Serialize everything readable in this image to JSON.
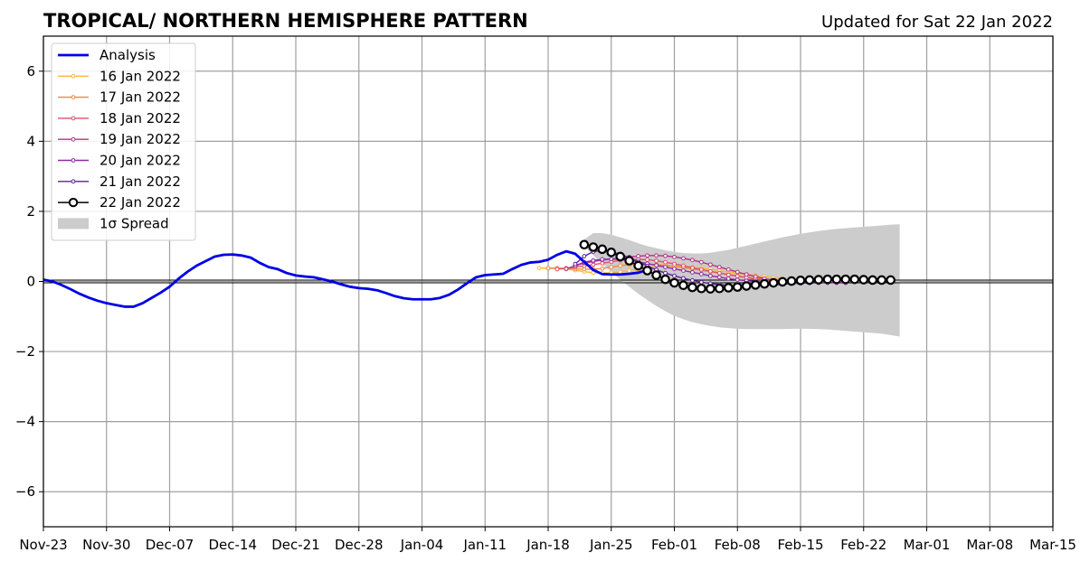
{
  "chart_data": {
    "type": "line",
    "title": "TROPICAL/ NORTHERN HEMISPHERE PATTERN",
    "updated": "Updated for Sat 22 Jan 2022",
    "xlabel": "",
    "ylabel": "",
    "ylim": [
      -7,
      7
    ],
    "yticks": [
      -6,
      -4,
      -2,
      0,
      2,
      4,
      6
    ],
    "ytick_labels": [
      "−6",
      "−4",
      "−2",
      "0",
      "2",
      "4",
      "6"
    ],
    "xlim": [
      "2021-11-23",
      "2022-03-15"
    ],
    "xticks": [
      "2021-11-23",
      "2021-11-30",
      "2021-12-07",
      "2021-12-14",
      "2021-12-21",
      "2021-12-28",
      "2022-01-04",
      "2022-01-11",
      "2022-01-18",
      "2022-01-25",
      "2022-02-01",
      "2022-02-08",
      "2022-02-15",
      "2022-02-22",
      "2022-03-01",
      "2022-03-08",
      "2022-03-15"
    ],
    "xtick_labels": [
      "Nov-23",
      "Nov-30",
      "Dec-07",
      "Dec-14",
      "Dec-21",
      "Dec-28",
      "Jan-04",
      "Jan-11",
      "Jan-18",
      "Jan-25",
      "Feb-01",
      "Feb-08",
      "Feb-15",
      "Feb-22",
      "Mar-01",
      "Mar-08",
      "Mar-15"
    ],
    "grid": true,
    "zero_line": true,
    "legend_placement": "top-left",
    "legend": [
      "Analysis",
      "16 Jan 2022",
      "17 Jan 2022",
      "18 Jan 2022",
      "19 Jan 2022",
      "20 Jan 2022",
      "21 Jan 2022",
      "22 Jan 2022",
      "1σ Spread"
    ],
    "analysis": {
      "name": "Analysis",
      "color": "#0000e6",
      "start": "2021-11-23",
      "values": [
        0.05,
        0.0,
        -0.1,
        -0.22,
        -0.35,
        -0.46,
        -0.55,
        -0.62,
        -0.67,
        -0.72,
        -0.72,
        -0.62,
        -0.47,
        -0.32,
        -0.15,
        0.08,
        0.28,
        0.45,
        0.58,
        0.71,
        0.76,
        0.77,
        0.74,
        0.68,
        0.53,
        0.41,
        0.35,
        0.24,
        0.17,
        0.14,
        0.12,
        0.06,
        0.0,
        -0.08,
        -0.15,
        -0.19,
        -0.21,
        -0.25,
        -0.33,
        -0.42,
        -0.48,
        -0.51,
        -0.51,
        -0.51,
        -0.47,
        -0.38,
        -0.23,
        -0.05,
        0.12,
        0.18,
        0.2,
        0.22,
        0.35,
        0.47,
        0.54,
        0.56,
        0.62,
        0.76,
        0.86,
        0.79,
        0.56,
        0.33,
        0.21,
        0.2,
        0.2,
        0.22,
        0.25,
        0.33
      ]
    },
    "forecasts": [
      {
        "name": "16 Jan 2022",
        "color": "#f9b737",
        "start": "2022-01-17",
        "values": [
          0.38,
          0.38,
          0.37,
          0.35,
          0.32,
          0.28,
          0.25,
          0.24,
          0.25,
          0.27,
          0.31,
          0.35,
          0.39,
          0.42,
          0.44,
          0.44,
          0.43,
          0.41,
          0.38,
          0.35,
          0.31,
          0.27,
          0.23,
          0.2,
          0.17,
          0.14,
          0.11,
          0.08,
          0.05,
          0.03,
          0.01,
          0.0,
          -0.01,
          -0.02,
          -0.02
        ]
      },
      {
        "name": "17 Jan 2022",
        "color": "#f0883c",
        "start": "2022-01-18",
        "values": [
          0.38,
          0.38,
          0.37,
          0.36,
          0.35,
          0.35,
          0.37,
          0.41,
          0.45,
          0.48,
          0.49,
          0.49,
          0.48,
          0.46,
          0.43,
          0.4,
          0.36,
          0.32,
          0.28,
          0.24,
          0.2,
          0.16,
          0.12,
          0.09,
          0.06,
          0.03,
          0.01,
          0.0,
          -0.01,
          -0.02,
          -0.02,
          -0.03,
          -0.03,
          -0.03
        ]
      },
      {
        "name": "18 Jan 2022",
        "color": "#de5168",
        "start": "2022-01-19",
        "values": [
          0.35,
          0.38,
          0.41,
          0.44,
          0.48,
          0.52,
          0.56,
          0.6,
          0.62,
          0.63,
          0.62,
          0.59,
          0.55,
          0.5,
          0.45,
          0.39,
          0.34,
          0.29,
          0.24,
          0.19,
          0.15,
          0.11,
          0.07,
          0.04,
          0.01,
          -0.01,
          -0.02,
          -0.03,
          -0.03,
          -0.03,
          -0.03,
          -0.03,
          -0.03
        ]
      },
      {
        "name": "19 Jan 2022",
        "color": "#b4308a",
        "start": "2022-01-20",
        "values": [
          0.36,
          0.45,
          0.52,
          0.57,
          0.61,
          0.64,
          0.67,
          0.7,
          0.72,
          0.74,
          0.74,
          0.73,
          0.7,
          0.66,
          0.61,
          0.55,
          0.48,
          0.41,
          0.34,
          0.27,
          0.2,
          0.14,
          0.08,
          0.04,
          0.01,
          -0.01,
          -0.03,
          -0.03,
          -0.03,
          -0.03,
          -0.03,
          -0.03
        ]
      },
      {
        "name": "20 Jan 2022",
        "color": "#8e2ba5",
        "start": "2022-01-21",
        "values": [
          0.45,
          0.55,
          0.6,
          0.63,
          0.64,
          0.63,
          0.6,
          0.56,
          0.51,
          0.46,
          0.41,
          0.36,
          0.31,
          0.26,
          0.21,
          0.16,
          0.12,
          0.08,
          0.05,
          0.02,
          0.0,
          -0.02,
          -0.03,
          -0.04,
          -0.04,
          -0.04,
          -0.04,
          -0.04,
          -0.04,
          -0.04,
          -0.04
        ]
      },
      {
        "name": "21 Jan 2022",
        "color": "#5b1f9e",
        "start": "2022-01-21",
        "values": [
          0.5,
          0.72,
          0.85,
          0.88,
          0.85,
          0.78,
          0.68,
          0.56,
          0.44,
          0.33,
          0.24,
          0.16,
          0.09,
          0.03,
          -0.02,
          -0.06,
          -0.09,
          -0.11,
          -0.12,
          -0.12,
          -0.12,
          -0.11,
          -0.1,
          -0.08,
          -0.06,
          -0.05,
          -0.04,
          -0.03
        ]
      }
    ],
    "latest": {
      "name": "22 Jan 2022",
      "color": "#000000",
      "start": "2022-01-22",
      "values": [
        1.05,
        0.98,
        0.92,
        0.83,
        0.71,
        0.59,
        0.45,
        0.31,
        0.18,
        0.06,
        -0.04,
        -0.11,
        -0.17,
        -0.2,
        -0.21,
        -0.2,
        -0.18,
        -0.16,
        -0.13,
        -0.1,
        -0.07,
        -0.04,
        -0.01,
        0.01,
        0.03,
        0.04,
        0.05,
        0.06,
        0.06,
        0.06,
        0.06,
        0.05,
        0.04,
        0.04,
        0.04
      ]
    },
    "spread": {
      "name": "1σ Spread",
      "color": "#cccccc",
      "start": "2022-01-22",
      "upper": [
        1.2,
        1.38,
        1.38,
        1.33,
        1.26,
        1.18,
        1.09,
        1.01,
        0.95,
        0.89,
        0.84,
        0.81,
        0.8,
        0.8,
        0.82,
        0.86,
        0.9,
        0.96,
        1.02,
        1.08,
        1.14,
        1.2,
        1.26,
        1.31,
        1.36,
        1.4,
        1.44,
        1.47,
        1.5,
        1.52,
        1.54,
        1.56,
        1.58,
        1.6,
        1.62,
        1.63
      ],
      "lower": [
        1.0,
        0.75,
        0.5,
        0.27,
        0.05,
        -0.15,
        -0.35,
        -0.53,
        -0.7,
        -0.85,
        -0.98,
        -1.08,
        -1.16,
        -1.22,
        -1.27,
        -1.31,
        -1.33,
        -1.35,
        -1.36,
        -1.36,
        -1.36,
        -1.36,
        -1.36,
        -1.35,
        -1.35,
        -1.35,
        -1.36,
        -1.37,
        -1.39,
        -1.41,
        -1.43,
        -1.45,
        -1.47,
        -1.49,
        -1.53,
        -1.57
      ]
    }
  }
}
